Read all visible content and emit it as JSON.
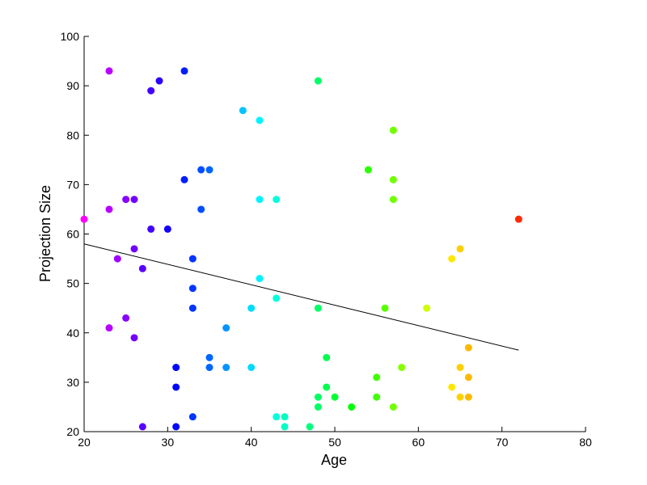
{
  "chart_data": {
    "type": "scatter",
    "title": "",
    "xlabel": "Age",
    "ylabel": "Projection Size",
    "xlim": [
      20,
      80
    ],
    "ylim": [
      20,
      100
    ],
    "xticks": [
      20,
      30,
      40,
      50,
      60,
      70,
      80
    ],
    "yticks": [
      20,
      30,
      40,
      50,
      60,
      70,
      80,
      90,
      100
    ],
    "grid": false,
    "colormap": "hsv (magenta → blue → cyan → green → yellow → red by age)",
    "points": [
      {
        "x": 20,
        "y": 63
      },
      {
        "x": 23,
        "y": 93
      },
      {
        "x": 23,
        "y": 65
      },
      {
        "x": 23,
        "y": 41
      },
      {
        "x": 24,
        "y": 55
      },
      {
        "x": 25,
        "y": 67
      },
      {
        "x": 25,
        "y": 43
      },
      {
        "x": 26,
        "y": 67
      },
      {
        "x": 26,
        "y": 57
      },
      {
        "x": 26,
        "y": 39
      },
      {
        "x": 27,
        "y": 53
      },
      {
        "x": 27,
        "y": 21
      },
      {
        "x": 28,
        "y": 89
      },
      {
        "x": 28,
        "y": 61
      },
      {
        "x": 29,
        "y": 91
      },
      {
        "x": 30,
        "y": 61
      },
      {
        "x": 31,
        "y": 33
      },
      {
        "x": 31,
        "y": 29
      },
      {
        "x": 31,
        "y": 21
      },
      {
        "x": 32,
        "y": 93
      },
      {
        "x": 32,
        "y": 71
      },
      {
        "x": 33,
        "y": 55
      },
      {
        "x": 33,
        "y": 49
      },
      {
        "x": 33,
        "y": 45
      },
      {
        "x": 33,
        "y": 23
      },
      {
        "x": 34,
        "y": 73
      },
      {
        "x": 34,
        "y": 65
      },
      {
        "x": 35,
        "y": 73
      },
      {
        "x": 35,
        "y": 35
      },
      {
        "x": 35,
        "y": 33
      },
      {
        "x": 37,
        "y": 41
      },
      {
        "x": 37,
        "y": 33
      },
      {
        "x": 39,
        "y": 85
      },
      {
        "x": 40,
        "y": 45
      },
      {
        "x": 40,
        "y": 33
      },
      {
        "x": 41,
        "y": 83
      },
      {
        "x": 41,
        "y": 67
      },
      {
        "x": 41,
        "y": 51
      },
      {
        "x": 43,
        "y": 67
      },
      {
        "x": 43,
        "y": 47
      },
      {
        "x": 43,
        "y": 23
      },
      {
        "x": 44,
        "y": 23
      },
      {
        "x": 44,
        "y": 21
      },
      {
        "x": 47,
        "y": 21
      },
      {
        "x": 48,
        "y": 91
      },
      {
        "x": 48,
        "y": 45
      },
      {
        "x": 48,
        "y": 27
      },
      {
        "x": 48,
        "y": 25
      },
      {
        "x": 49,
        "y": 35
      },
      {
        "x": 49,
        "y": 29
      },
      {
        "x": 50,
        "y": 27
      },
      {
        "x": 52,
        "y": 25
      },
      {
        "x": 54,
        "y": 73
      },
      {
        "x": 55,
        "y": 31
      },
      {
        "x": 55,
        "y": 27
      },
      {
        "x": 56,
        "y": 45
      },
      {
        "x": 57,
        "y": 81
      },
      {
        "x": 57,
        "y": 71
      },
      {
        "x": 57,
        "y": 67
      },
      {
        "x": 57,
        "y": 25
      },
      {
        "x": 58,
        "y": 33
      },
      {
        "x": 61,
        "y": 45
      },
      {
        "x": 64,
        "y": 55
      },
      {
        "x": 64,
        "y": 29
      },
      {
        "x": 65,
        "y": 57
      },
      {
        "x": 65,
        "y": 33
      },
      {
        "x": 65,
        "y": 27
      },
      {
        "x": 66,
        "y": 37
      },
      {
        "x": 66,
        "y": 31
      },
      {
        "x": 66,
        "y": 27
      },
      {
        "x": 72,
        "y": 63
      }
    ],
    "fit_line": {
      "x": [
        20,
        72
      ],
      "y": [
        58,
        36.5
      ],
      "color": "#000000"
    }
  }
}
